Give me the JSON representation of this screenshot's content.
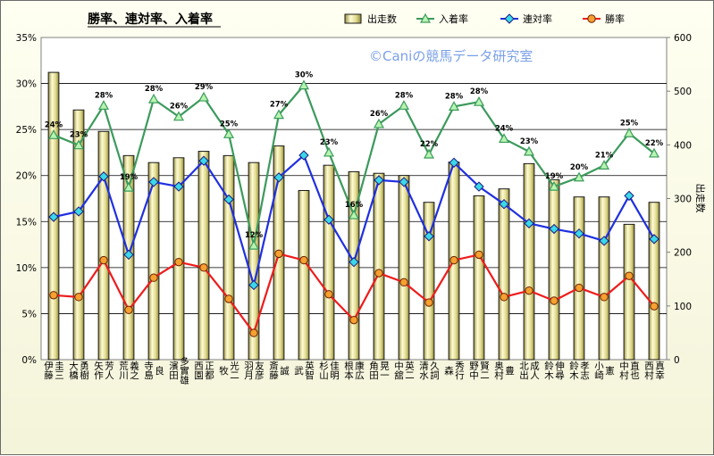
{
  "chart_data": {
    "type": "bar",
    "title": "勝率、連対率、入着率",
    "credit": "©Caniの競馬データ研究室",
    "categories": [
      "伊藤 圭三",
      "大橋 勇樹",
      "矢作 芳人",
      "荒川 義之",
      "寺島 良",
      "濱田 多實雄",
      "西園 正都",
      "牧 光二",
      "羽月 友彦",
      "斎藤 誠",
      "武 英智",
      "杉山 佳明",
      "根本 康広",
      "角田 晃一",
      "中舘 英二",
      "清水 久詞",
      "森 秀行",
      "野中 賢二",
      "奥村 豊",
      "北出 成人",
      "鈴木 伸尋",
      "鈴木 孝志",
      "小崎 憲",
      "中村 直也",
      "西村 真幸"
    ],
    "series": [
      {
        "name": "出走数",
        "type": "bar",
        "axis": "right",
        "color": "#d4d08a",
        "values": [
          535,
          465,
          425,
          380,
          367,
          376,
          388,
          380,
          367,
          398,
          315,
          362,
          350,
          347,
          343,
          293,
          368,
          305,
          318,
          365,
          335,
          303,
          303,
          252,
          293
        ]
      },
      {
        "name": "入着率",
        "type": "line",
        "axis": "left",
        "color": "#3c9a5c",
        "marker": "triangle",
        "values": [
          24.4,
          23.3,
          27.6,
          18.7,
          28.3,
          26.4,
          28.5,
          24.5,
          12.4,
          26.6,
          29.8,
          22.5,
          15.7,
          25.6,
          27.6,
          22.3,
          27.5,
          28.0,
          24.0,
          22.6,
          18.8,
          19.8,
          21.1,
          24.6,
          22.4
        ]
      },
      {
        "name": "連対率",
        "type": "line",
        "axis": "left",
        "color": "#1f2fe0",
        "marker": "diamond",
        "values": [
          15.5,
          16.1,
          19.9,
          11.4,
          19.3,
          18.8,
          21.6,
          17.4,
          8.1,
          19.8,
          22.2,
          15.2,
          10.6,
          19.5,
          19.3,
          13.4,
          21.4,
          18.8,
          16.9,
          14.8,
          14.2,
          13.7,
          12.9,
          17.8,
          13.1
        ]
      },
      {
        "name": "勝率",
        "type": "line",
        "axis": "left",
        "color": "#ee1c1c",
        "marker": "circle",
        "values": [
          7.0,
          6.8,
          10.8,
          5.4,
          8.9,
          10.6,
          10.0,
          6.6,
          2.9,
          11.5,
          10.8,
          7.1,
          4.3,
          9.4,
          8.4,
          6.2,
          10.8,
          11.4,
          6.8,
          7.5,
          6.4,
          7.8,
          6.8,
          9.1,
          5.8
        ]
      }
    ],
    "point_labels": [
      "24%",
      "23%",
      "28%",
      "19%",
      "28%",
      "26%",
      "29%",
      "25%",
      "12%",
      "27%",
      "30%",
      "23%",
      "16%",
      "26%",
      "28%",
      "22%",
      "28%",
      "28%",
      "24%",
      "23%",
      "19%",
      "20%",
      "21%",
      "25%",
      "22%"
    ],
    "y_left": {
      "min": 0,
      "max": 35,
      "step": 5,
      "unit": "%"
    },
    "y_right": {
      "min": 0,
      "max": 600,
      "step": 100,
      "label": "出走数"
    },
    "grid": true,
    "legend_position": "top"
  }
}
